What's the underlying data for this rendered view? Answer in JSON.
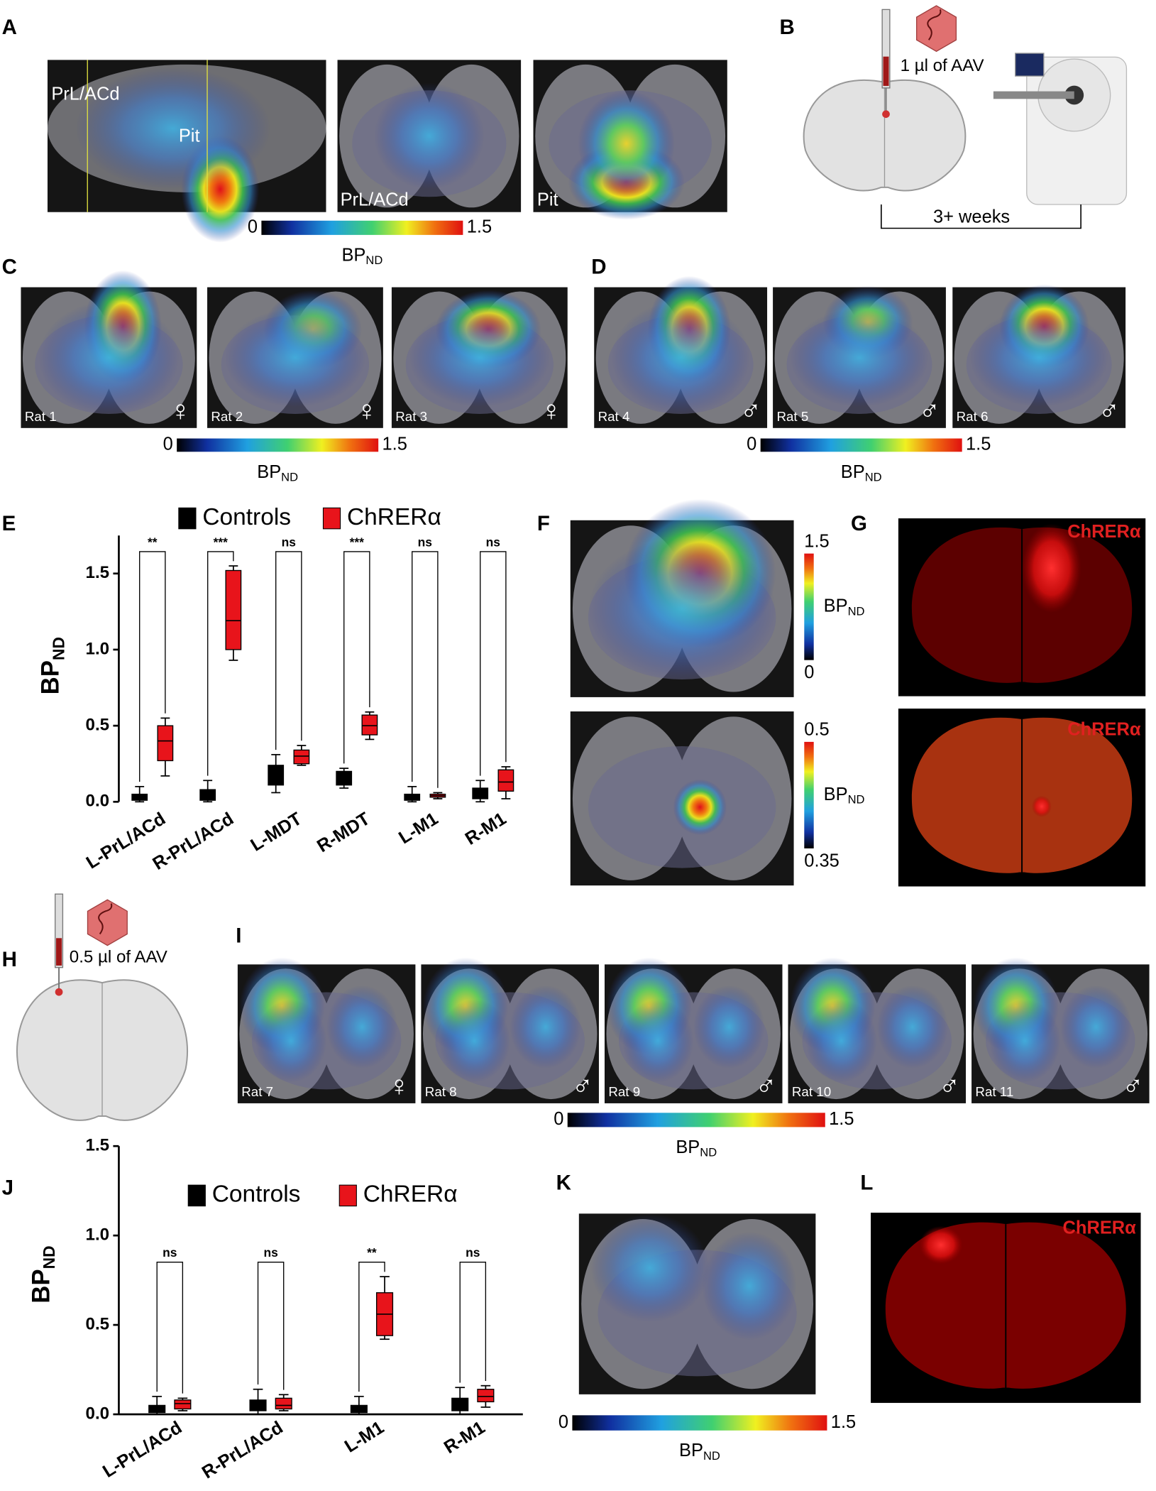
{
  "panel_A": {
    "label": "A",
    "image_labels": [
      "PrL/ACd",
      "Pit",
      "PrL/ACd",
      "Pit"
    ],
    "colorbar": {
      "min": 0,
      "max": 1.5,
      "title": "BP",
      "title_subscript": "ND"
    }
  },
  "panel_B": {
    "label": "B",
    "injection": "1 µl of AAV",
    "interval": "3+ weeks"
  },
  "panel_C": {
    "label": "C",
    "scans": [
      {
        "name": "Rat 1",
        "sex": "♀"
      },
      {
        "name": "Rat 2",
        "sex": "♀"
      },
      {
        "name": "Rat 3",
        "sex": "♀"
      }
    ],
    "colorbar": {
      "min": 0,
      "max": 1.5,
      "title": "BP",
      "title_subscript": "ND"
    }
  },
  "panel_D": {
    "label": "D",
    "scans": [
      {
        "name": "Rat 4",
        "sex": "♂"
      },
      {
        "name": "Rat 5",
        "sex": "♂"
      },
      {
        "name": "Rat 6",
        "sex": "♂"
      }
    ],
    "colorbar": {
      "min": 0,
      "max": 1.5,
      "title": "BP",
      "title_subscript": "ND"
    }
  },
  "panel_F": {
    "label": "F",
    "colorbars": [
      {
        "min": 0,
        "max": 1.5,
        "title": "BP",
        "title_subscript": "ND"
      },
      {
        "min": 0.35,
        "max": 0.5,
        "title": "BP",
        "title_subscript": "ND"
      }
    ]
  },
  "panel_G": {
    "label": "G",
    "stain_labels": [
      "ChRERα",
      "ChRERα"
    ]
  },
  "panel_H": {
    "label": "H",
    "injection": "0.5 µl of AAV"
  },
  "panel_I": {
    "label": "I",
    "scans": [
      {
        "name": "Rat 7",
        "sex": "♀"
      },
      {
        "name": "Rat 8",
        "sex": "♂"
      },
      {
        "name": "Rat 9",
        "sex": "♂"
      },
      {
        "name": "Rat 10",
        "sex": "♂"
      },
      {
        "name": "Rat 11",
        "sex": "♂"
      }
    ],
    "colorbar": {
      "min": 0,
      "max": 1.5,
      "title": "BP",
      "title_subscript": "ND"
    }
  },
  "panel_K": {
    "label": "K",
    "colorbar": {
      "min": 0,
      "max": 1.5,
      "title": "BP",
      "title_subscript": "ND"
    }
  },
  "panel_L": {
    "label": "L",
    "stain_label": "ChRERα"
  },
  "chart_data": [
    {
      "label": "E",
      "type": "box",
      "categories": [
        "L-PrL/ACd",
        "R-PrL/ACd",
        "L-MDT",
        "R-MDT",
        "L-M1",
        "R-M1"
      ],
      "ylim": [
        0,
        1.75
      ],
      "yticks": [
        {
          "value": 0,
          "label": "0.0"
        },
        0.5,
        {
          "value": 1,
          "label": "1.0"
        },
        1.5
      ],
      "y_label": "BP",
      "y_label_subscript": "ND",
      "series": [
        {
          "name": "Controls",
          "color": "#000000",
          "values": [
            [
              0,
              0.01,
              0.03,
              0.05,
              0.1
            ],
            [
              0,
              0.01,
              0.04,
              0.08,
              0.14
            ],
            [
              0.06,
              0.11,
              0.17,
              0.24,
              0.31
            ],
            [
              0.09,
              0.11,
              0.16,
              0.2,
              0.22
            ],
            [
              0,
              0.01,
              0.03,
              0.05,
              0.1
            ],
            [
              0,
              0.02,
              0.05,
              0.09,
              0.14
            ]
          ]
        },
        {
          "name": "ChRERα",
          "color": "#e8141b",
          "values": [
            [
              0.17,
              0.27,
              0.4,
              0.5,
              0.55
            ],
            [
              0.93,
              1.0,
              1.19,
              1.52,
              1.55
            ],
            [
              0.24,
              0.25,
              0.3,
              0.34,
              0.37
            ],
            [
              0.41,
              0.44,
              0.5,
              0.57,
              0.59
            ],
            [
              0.02,
              0.03,
              0.04,
              0.05,
              0.06
            ],
            [
              0.02,
              0.07,
              0.13,
              0.21,
              0.23
            ]
          ]
        }
      ],
      "significance": [
        "**",
        "***",
        "ns",
        "***",
        "ns",
        "ns"
      ]
    },
    {
      "label": "J",
      "type": "box",
      "categories": [
        "L-PrL/ACd",
        "R-PrL/ACd",
        "L-M1",
        "R-M1"
      ],
      "ylim": [
        0,
        1.5
      ],
      "yticks": [
        {
          "value": 0,
          "label": "0.0"
        },
        0.5,
        {
          "value": 1,
          "label": "1.0"
        },
        1.5
      ],
      "y_label": "BP",
      "y_label_subscript": "ND",
      "series": [
        {
          "name": "Controls",
          "color": "#000000",
          "values": [
            [
              0,
              0.01,
              0.03,
              0.05,
              0.1
            ],
            [
              0,
              0.02,
              0.05,
              0.08,
              0.14
            ],
            [
              0,
              0.01,
              0.03,
              0.05,
              0.1
            ],
            [
              0,
              0.02,
              0.05,
              0.09,
              0.15
            ]
          ]
        },
        {
          "name": "ChRERα",
          "color": "#e8141b",
          "values": [
            [
              0.02,
              0.03,
              0.06,
              0.08,
              0.09
            ],
            [
              0.02,
              0.03,
              0.05,
              0.09,
              0.11
            ],
            [
              0.42,
              0.44,
              0.56,
              0.68,
              0.77
            ],
            [
              0.04,
              0.07,
              0.1,
              0.14,
              0.16
            ]
          ]
        }
      ],
      "significance": [
        "ns",
        "ns",
        "**",
        "ns"
      ]
    }
  ]
}
